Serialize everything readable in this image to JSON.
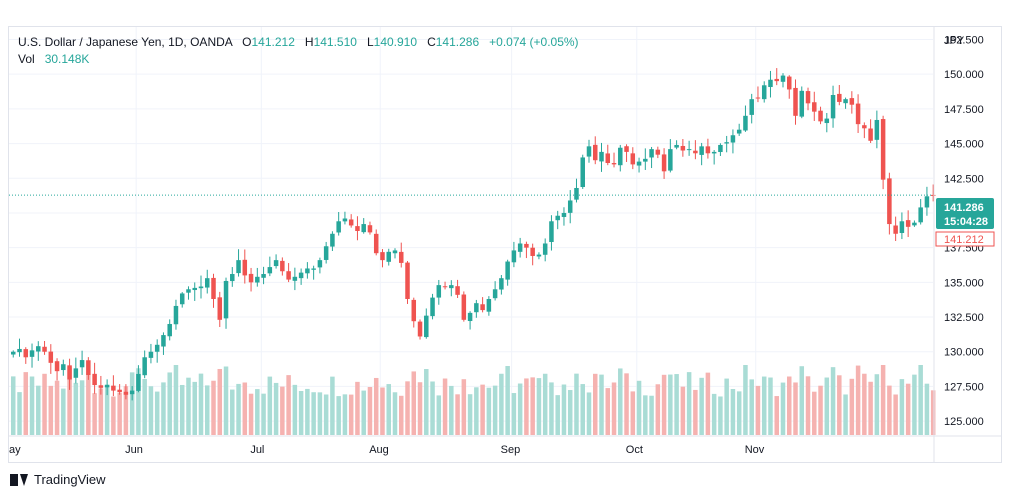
{
  "legend": {
    "symbol": "U.S. Dollar / Japanese Yen, 1D, OANDA",
    "o_label": "O",
    "o_value": "141.212",
    "h_label": "H",
    "h_value": "141.510",
    "l_label": "L",
    "l_value": "140.910",
    "c_label": "C",
    "c_value": "141.286",
    "change": "+0.074 (+0.05%)",
    "vol_label": "Vol",
    "vol_value": "30.148K"
  },
  "price_axis": {
    "currency": "JPY"
  },
  "last_price": {
    "value": "141.286",
    "countdown": "15:04:28",
    "open_value": "141.212"
  },
  "footer": {
    "brand": "TradingView"
  },
  "colors": {
    "up": "#26a69a",
    "down": "#ef5350",
    "up_vol": "#a9dcd5",
    "down_vol": "#f5b2b0",
    "grid": "#f0f3fa",
    "axis_text": "#131722"
  },
  "chart_data": {
    "type": "candlestick",
    "ylim": [
      124.0,
      153.4
    ],
    "yticks": [
      "152.500",
      "150.000",
      "147.500",
      "145.000",
      "142.500",
      "140.000",
      "137.500",
      "135.000",
      "132.500",
      "130.000",
      "127.500",
      "125.000"
    ],
    "yticks_values": [
      152.5,
      150,
      147.5,
      145,
      142.5,
      140,
      137.5,
      135,
      132.5,
      130,
      127.5,
      125
    ],
    "x_labels": [
      "ay",
      "Jun",
      "Jul",
      "Aug",
      "Sep",
      "Oct",
      "Nov"
    ],
    "x_label_bar_index": [
      0,
      20,
      40,
      59,
      80,
      100,
      119
    ],
    "grid": true,
    "closes": [
      130.0,
      130.2,
      129.6,
      130.1,
      130.4,
      130.0,
      129.2,
      128.6,
      129.1,
      128.0,
      128.8,
      129.4,
      128.3,
      127.6,
      127.4,
      127.6,
      127.2,
      127.1,
      126.9,
      127.2,
      128.4,
      129.6,
      130.0,
      130.5,
      131.2,
      132.0,
      133.3,
      134.2,
      134.5,
      134.6,
      134.7,
      135.3,
      133.8,
      132.3,
      135.1,
      135.6,
      136.6,
      135.5,
      135.0,
      135.4,
      135.6,
      136.1,
      136.6,
      135.8,
      135.2,
      135.4,
      135.7,
      136.0,
      136.0,
      136.6,
      137.6,
      138.5,
      139.4,
      139.6,
      139.1,
      138.7,
      139.2,
      138.6,
      137.1,
      136.6,
      137.2,
      137.3,
      136.4,
      133.8,
      132.2,
      131.1,
      132.6,
      133.9,
      134.8,
      134.7,
      134.8,
      134.1,
      132.3,
      132.8,
      133.5,
      133.0,
      133.8,
      134.5,
      135.3,
      136.5,
      137.3,
      137.8,
      137.5,
      136.9,
      137.0,
      137.8,
      139.4,
      139.8,
      140.0,
      140.9,
      141.8,
      144.0,
      144.8,
      143.8,
      144.4,
      143.6,
      143.5,
      144.7,
      144.4,
      143.5,
      143.7,
      143.9,
      144.6,
      144.2,
      143.0,
      144.6,
      144.9,
      144.5,
      144.6,
      144.3,
      144.8,
      144.3,
      144.4,
      144.9,
      145.1,
      145.6,
      146.0,
      147.0,
      148.2,
      148.3,
      149.2,
      149.6,
      149.5,
      149.9,
      148.9,
      147.0,
      148.8,
      147.9,
      147.3,
      146.6,
      146.8,
      148.5,
      148.0,
      148.2,
      147.8,
      146.4,
      146.1,
      145.2,
      146.7,
      142.4,
      139.2,
      138.5,
      139.4,
      139.0,
      139.3,
      140.4,
      141.2,
      141.3
    ],
    "volume_max": 31.0
  }
}
